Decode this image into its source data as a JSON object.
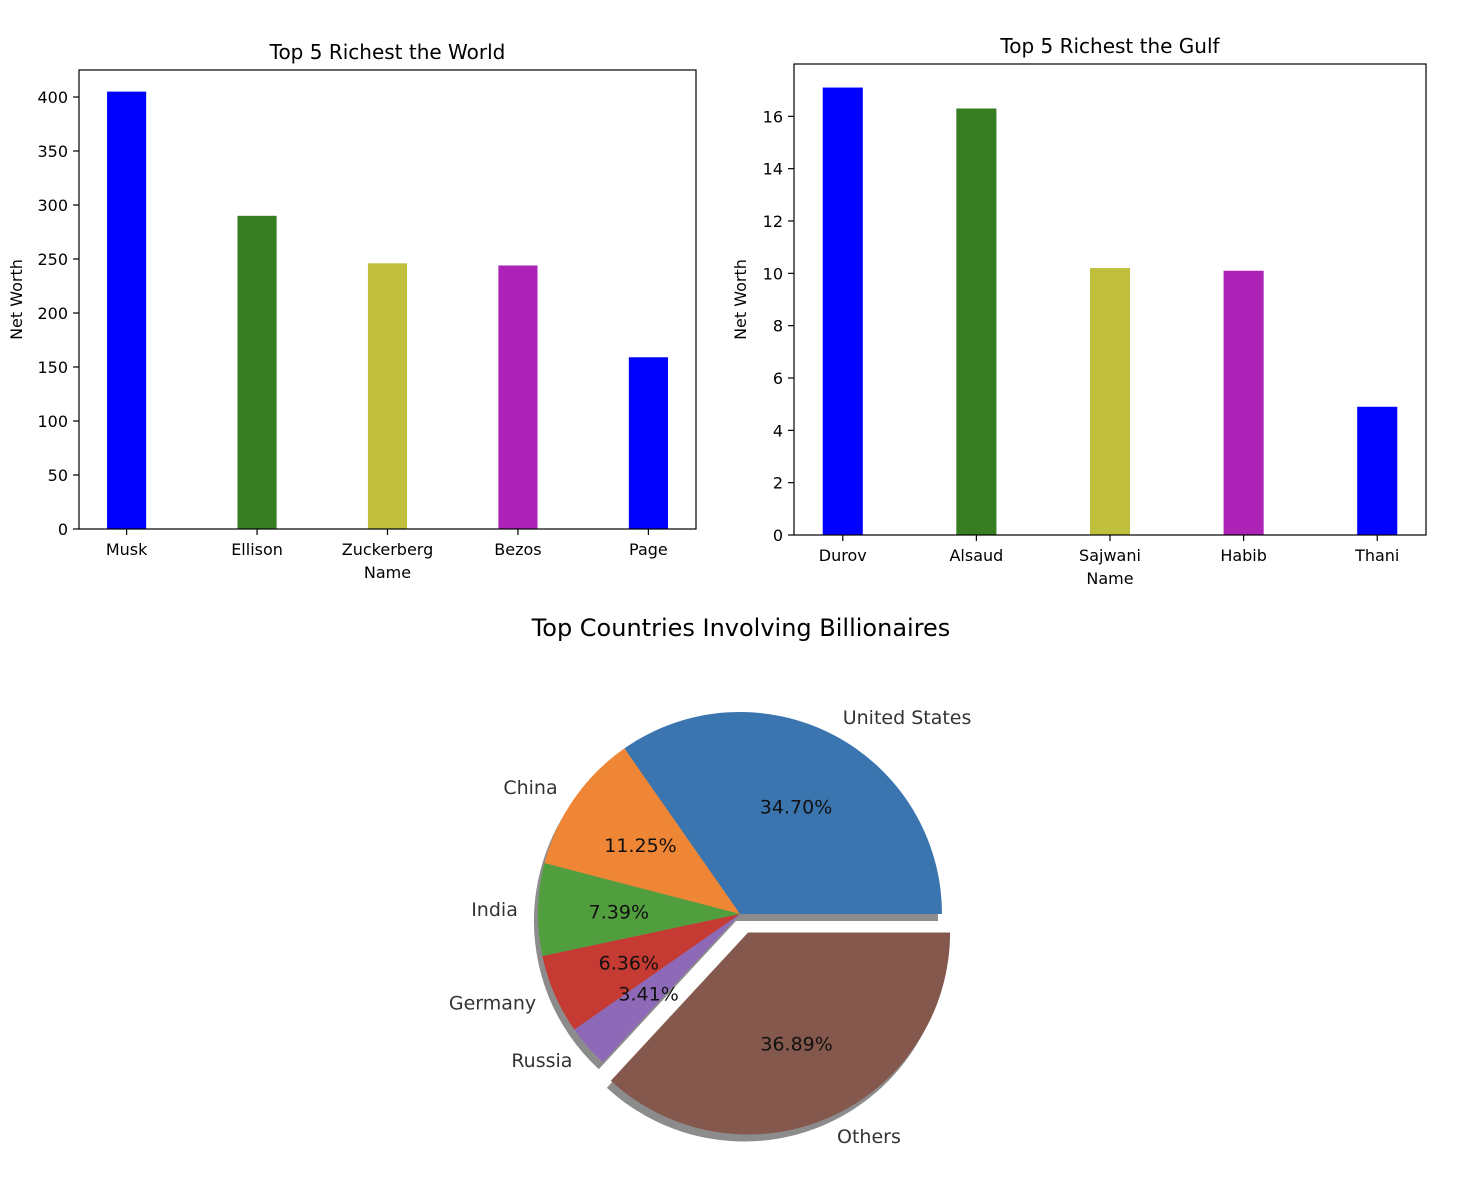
{
  "chart_data": [
    {
      "type": "bar",
      "title": "Top 5 Richest the World",
      "xlabel": "Name",
      "ylabel": "Net Worth",
      "categories": [
        "Musk",
        "Ellison",
        "Zuckerberg",
        "Bezos",
        "Page"
      ],
      "values": [
        405,
        290,
        246,
        244,
        159
      ],
      "colors": [
        "#0000ff",
        "#377e22",
        "#bfbf3b",
        "#ad22b7",
        "#0000ff"
      ],
      "ylim": [
        0,
        425
      ],
      "yticks": [
        0,
        50,
        100,
        150,
        200,
        250,
        300,
        350,
        400
      ],
      "grid": false
    },
    {
      "type": "bar",
      "title": "Top 5 Richest the Gulf",
      "xlabel": "Name",
      "ylabel": "Net Worth",
      "categories": [
        "Durov",
        "Alsaud",
        "Sajwani",
        "Habib",
        "Thani"
      ],
      "values": [
        17.1,
        16.3,
        10.2,
        10.1,
        4.9
      ],
      "colors": [
        "#0000ff",
        "#377e22",
        "#bfbf3b",
        "#ad22b7",
        "#0000ff"
      ],
      "ylim": [
        0,
        18
      ],
      "yticks": [
        0,
        2,
        4,
        6,
        8,
        10,
        12,
        14,
        16
      ],
      "grid": false
    },
    {
      "type": "pie",
      "title": "Top Countries Involving Billionaires",
      "labels": [
        "United States",
        "China",
        "India",
        "Germany",
        "Russia",
        "Others"
      ],
      "values": [
        34.7,
        11.25,
        7.39,
        6.36,
        3.41,
        36.89
      ],
      "pct_labels": [
        "34.70%",
        "11.25%",
        "7.39%",
        "6.36%",
        "3.41%",
        "36.89%"
      ],
      "colors": [
        "#3b75af",
        "#ef8636",
        "#519e3e",
        "#c53a32",
        "#8d69b8",
        "#84584d"
      ],
      "explode": [
        0,
        0,
        0,
        0,
        0,
        0.1
      ],
      "shadow": true
    }
  ]
}
